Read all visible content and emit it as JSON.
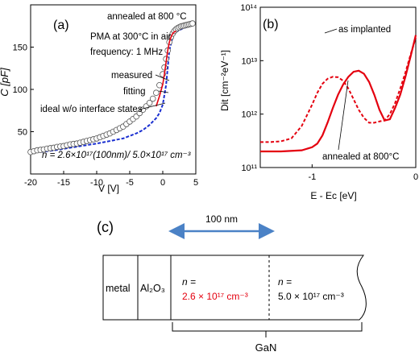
{
  "chart_data": [
    {
      "panel_label": "(a)",
      "type": "scatter",
      "xlabel": "V [V]",
      "ylabel": "C [pF]",
      "xlim": [
        -20,
        5
      ],
      "ylim": [
        0,
        200
      ],
      "xticks": [
        "-20",
        "-15",
        "-10",
        "-5",
        "0",
        "5"
      ],
      "yticks": [
        "50",
        "100",
        "150"
      ],
      "annotations": [
        "annealed at 800 °C",
        "PMA at 300°C in air",
        "frequency: 1 MHz",
        "n = 2.6×10¹⁷(100nm)/ 5.0×10¹⁷ cm⁻³"
      ],
      "series": [
        {
          "name": "measured",
          "style": "markers",
          "x": [
            -20,
            -19.5,
            -19,
            -18.5,
            -18,
            -17.5,
            -17,
            -16.5,
            -16,
            -15.5,
            -15,
            -14.5,
            -14,
            -13.5,
            -13,
            -12.5,
            -12,
            -11.5,
            -11,
            -10.5,
            -10,
            -9.5,
            -9,
            -8.5,
            -8,
            -7.5,
            -7,
            -6.5,
            -6,
            -5.5,
            -5,
            -4.5,
            -4,
            -3.5,
            -3,
            -2.5,
            -2,
            -1.5,
            -1,
            -0.5,
            0,
            0.25,
            0.5,
            0.75,
            1,
            1.25,
            1.5,
            1.75,
            2,
            2.25,
            2.5,
            2.75,
            3,
            3.25,
            3.5,
            3.75,
            4,
            4.25,
            4.5
          ],
          "y": [
            26,
            27,
            28,
            28.5,
            29,
            30,
            30.5,
            31,
            32,
            32.5,
            33,
            34,
            35,
            35.5,
            36,
            37,
            38,
            39,
            40,
            41,
            42,
            43.5,
            45,
            46.5,
            48,
            50,
            52,
            54,
            56,
            59,
            62,
            65,
            68,
            72,
            76,
            80,
            84,
            89,
            96,
            105,
            118,
            126,
            136,
            146,
            156,
            162,
            166,
            169,
            171,
            172.5,
            173.5,
            174.5,
            175,
            175.5,
            176,
            176.5,
            177,
            177.5,
            178
          ]
        },
        {
          "name": "fitting",
          "style": "red-solid",
          "x": [
            -1,
            -0.5,
            0,
            0.25,
            0.5,
            0.75,
            1,
            1.25,
            1.5,
            1.75,
            2
          ],
          "y": [
            80,
            92,
            106,
            118,
            132,
            146,
            156,
            162,
            166,
            168,
            169
          ]
        },
        {
          "name": "ideal w/o interface states",
          "style": "blue-dashed",
          "x": [
            -20,
            -18,
            -16,
            -14,
            -12,
            -10,
            -8,
            -6,
            -5,
            -4,
            -3,
            -2,
            -1,
            -0.5,
            0,
            0.5,
            1,
            1.5,
            2,
            3,
            4.5
          ],
          "y": [
            25,
            26.5,
            28.5,
            31,
            33.5,
            36,
            39,
            42,
            45,
            48,
            52,
            58,
            66,
            72,
            82,
            105,
            146,
            162,
            168,
            172,
            176
          ]
        }
      ]
    },
    {
      "panel_label": "(b)",
      "type": "line",
      "xlabel": "E - Ec [eV]",
      "ylabel": "Dit [cm⁻²eV⁻¹]",
      "xlim": [
        -1.5,
        0
      ],
      "ylim": [
        100000000000,
        100000000000000
      ],
      "yscale": "log",
      "xticks": [
        "-1",
        "0"
      ],
      "yticks": [
        "10¹¹",
        "10¹²",
        "10¹³",
        "10¹⁴"
      ],
      "series": [
        {
          "name": "as implanted",
          "style": "red-dashed",
          "x": [
            -1.5,
            -1.4,
            -1.3,
            -1.2,
            -1.1,
            -1.0,
            -0.95,
            -0.9,
            -0.85,
            -0.8,
            -0.75,
            -0.7,
            -0.65,
            -0.6,
            -0.55,
            -0.5,
            -0.45,
            -0.4,
            -0.35,
            -0.3,
            -0.25,
            -0.2,
            -0.15,
            -0.1,
            -0.05,
            0
          ],
          "y": [
            300000000000,
            300000000000,
            310000000000,
            350000000000,
            600000000000,
            1500000000000,
            2500000000000,
            3700000000000,
            4600000000000,
            5000000000000,
            4900000000000,
            4200000000000,
            3000000000000,
            1900000000000,
            1200000000000,
            850000000000,
            690000000000,
            690000000000,
            730000000000,
            760000000000,
            1000000000000,
            1600000000000,
            3000000000000,
            6000000000000,
            13000000000000,
            27000000000000
          ]
        },
        {
          "name": "annealed at 800°C",
          "style": "red-solid",
          "x": [
            -1.5,
            -1.3,
            -1.1,
            -1.0,
            -0.95,
            -0.9,
            -0.85,
            -0.8,
            -0.75,
            -0.7,
            -0.65,
            -0.6,
            -0.55,
            -0.5,
            -0.45,
            -0.4,
            -0.35,
            -0.3,
            -0.25,
            -0.2,
            -0.15,
            -0.1,
            -0.05,
            0
          ],
          "y": [
            200000000000,
            200000000000,
            210000000000,
            240000000000,
            280000000000,
            400000000000,
            700000000000,
            1300000000000,
            2300000000000,
            3600000000000,
            5000000000000,
            6200000000000,
            6500000000000,
            5700000000000,
            4000000000000,
            2300000000000,
            1200000000000,
            760000000000,
            800000000000,
            1300000000000,
            2300000000000,
            5000000000000,
            12000000000000,
            30000000000000
          ]
        }
      ]
    }
  ],
  "panel_c": {
    "label": "(c)",
    "width_label": "100 nm",
    "metal_label": "metal",
    "oxide_label": "Al₂O₃",
    "region1": {
      "line1": "n =",
      "line2": "2.6 × 10¹⁷ cm⁻³"
    },
    "region2": {
      "line1": "n =",
      "line2": "5.0 × 10¹⁷ cm⁻³"
    },
    "gan_label": "GaN"
  },
  "colors": {
    "measured": "#ffffff",
    "fitting": "#e4000f",
    "ideal": "#1a2fd0",
    "arrow": "#4b82c6"
  }
}
